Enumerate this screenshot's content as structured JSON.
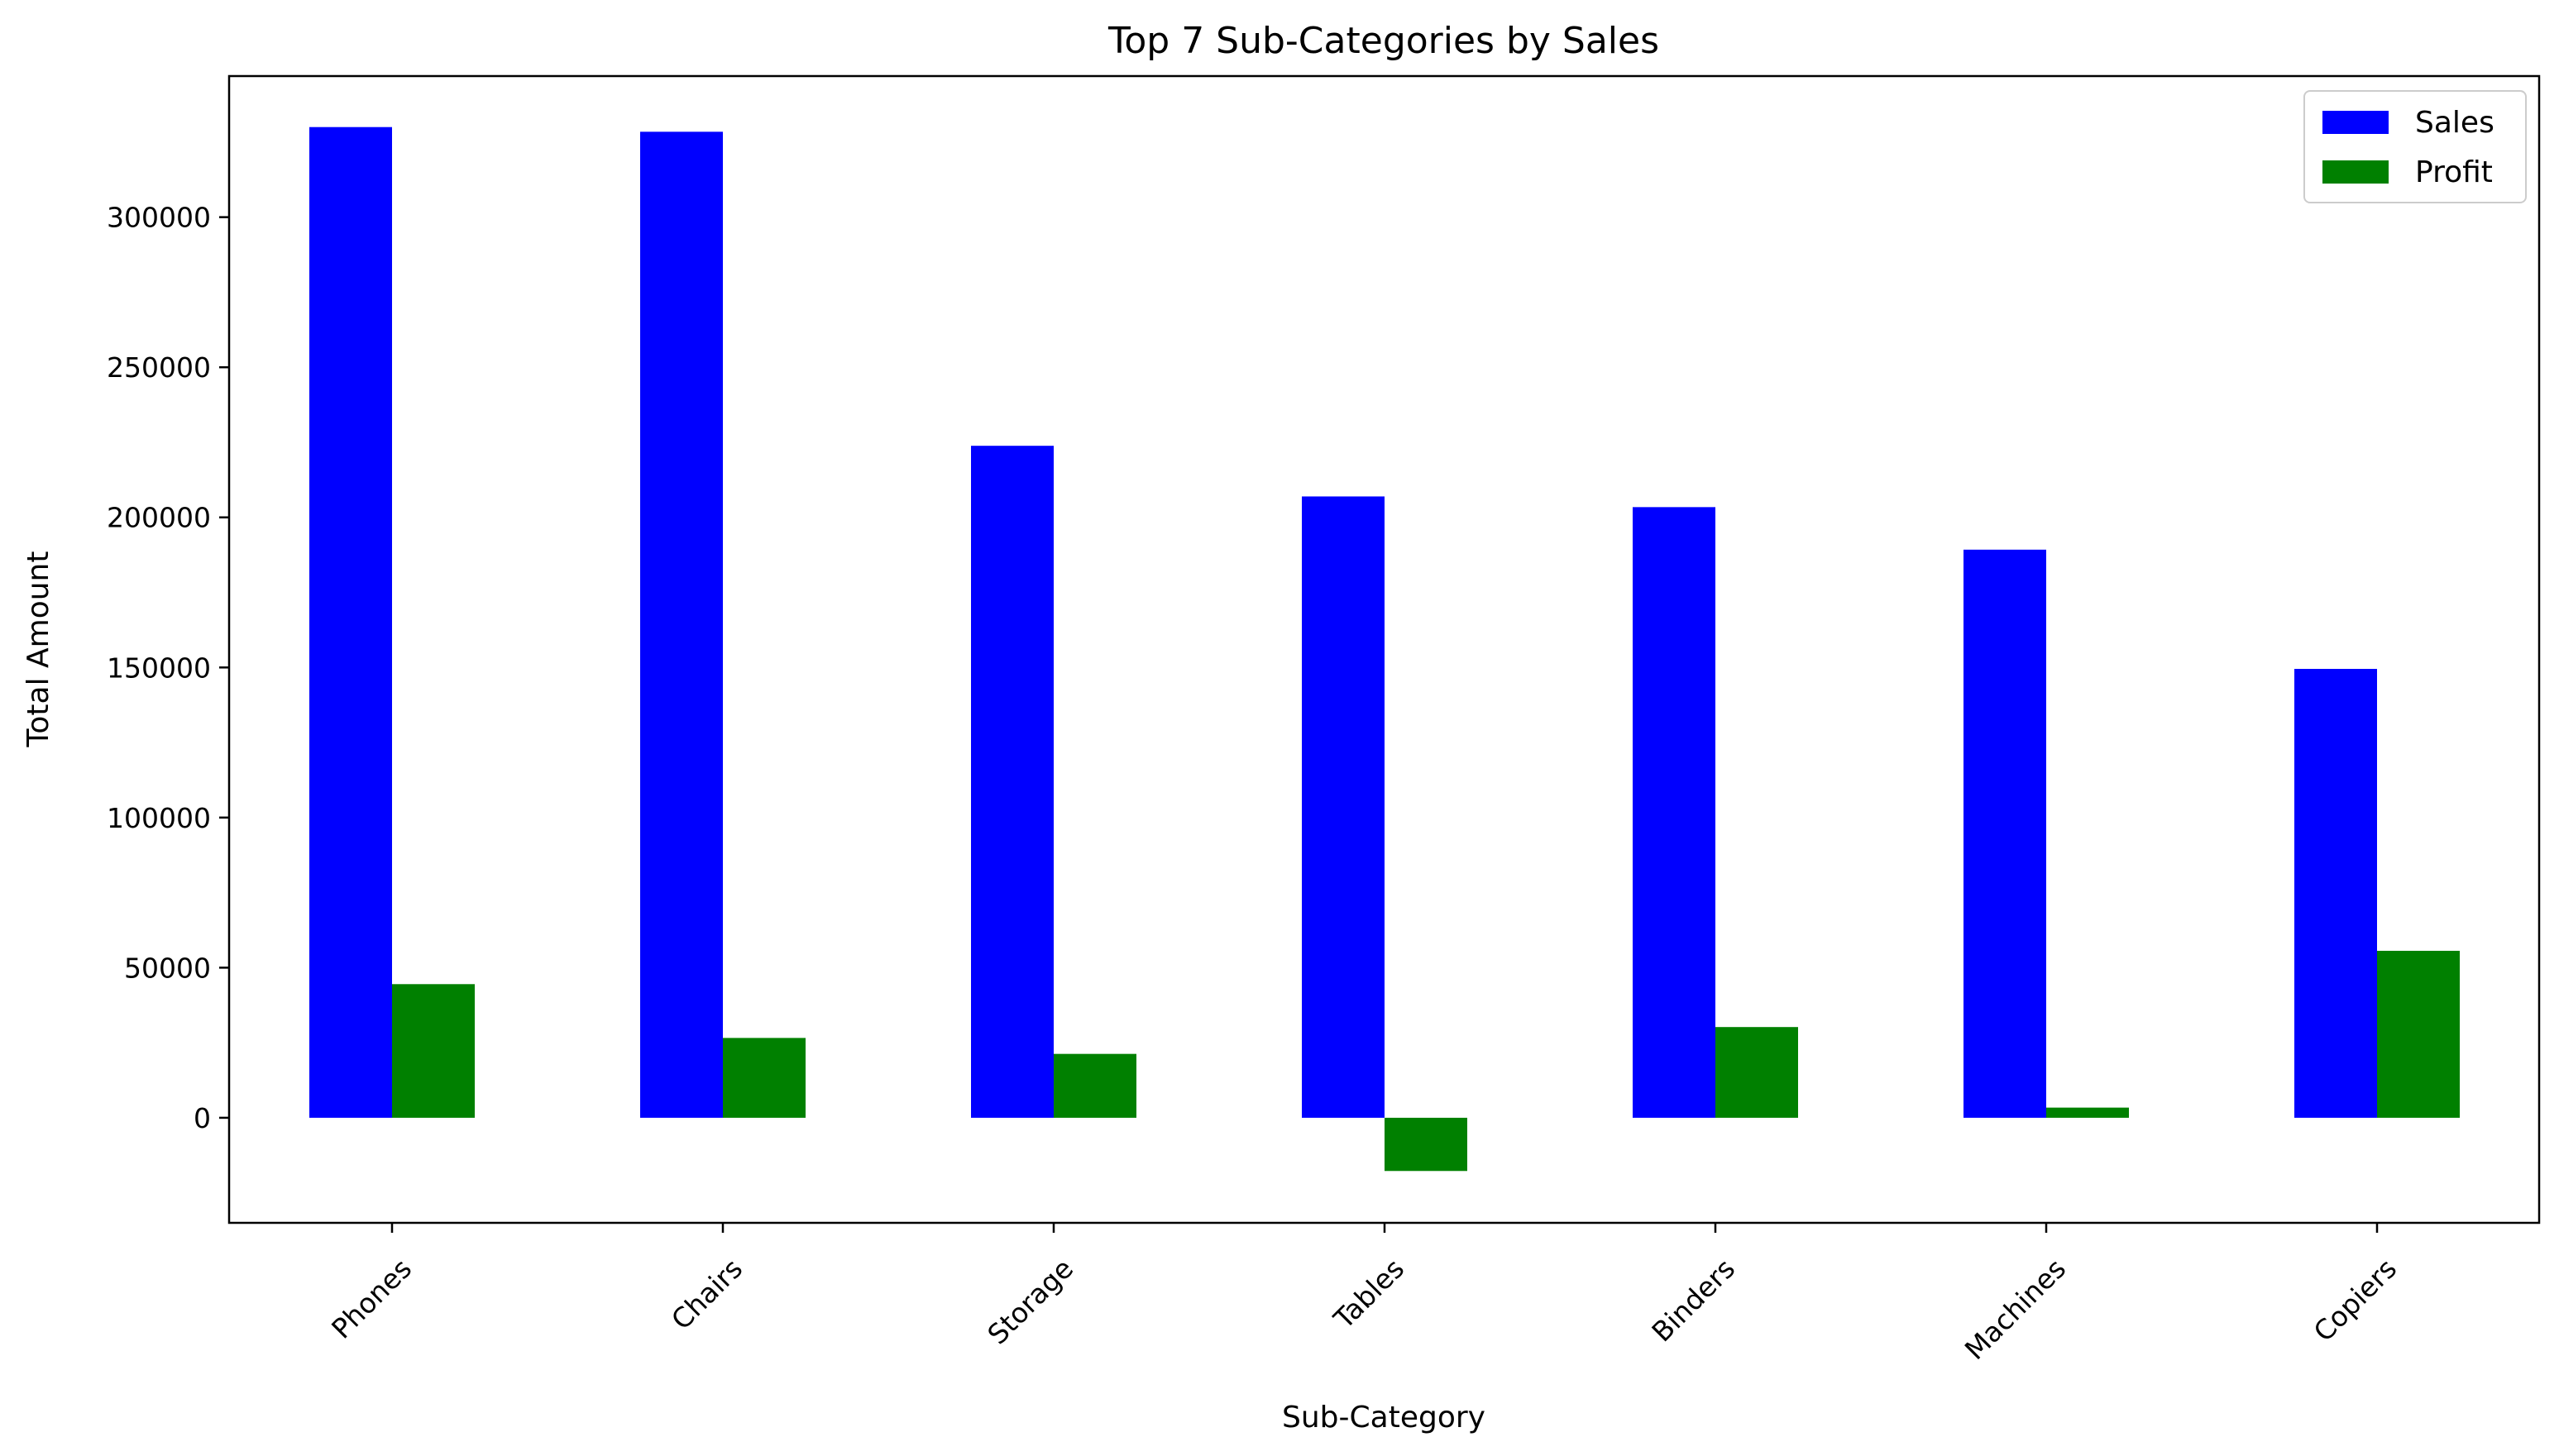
{
  "chart_data": {
    "type": "bar",
    "title": "Top 7 Sub-Categories by Sales",
    "xlabel": "Sub-Category",
    "ylabel": "Total Amount",
    "categories": [
      "Phones",
      "Chairs",
      "Storage",
      "Tables",
      "Binders",
      "Machines",
      "Copiers"
    ],
    "series": [
      {
        "name": "Sales",
        "color": "#0000ff",
        "values": [
          330007,
          328449,
          223844,
          206966,
          203413,
          189239,
          149528
        ]
      },
      {
        "name": "Profit",
        "color": "#008000",
        "values": [
          44516,
          26590,
          21279,
          -17725,
          30222,
          3385,
          55618
        ]
      }
    ],
    "ylim": [
      -35000,
      347000
    ],
    "yticks": [
      0,
      50000,
      100000,
      150000,
      200000,
      250000,
      300000
    ],
    "ytick_labels": [
      "0",
      "50000",
      "100000",
      "150000",
      "200000",
      "250000",
      "300000"
    ],
    "legend": "top-right",
    "grid": false
  }
}
